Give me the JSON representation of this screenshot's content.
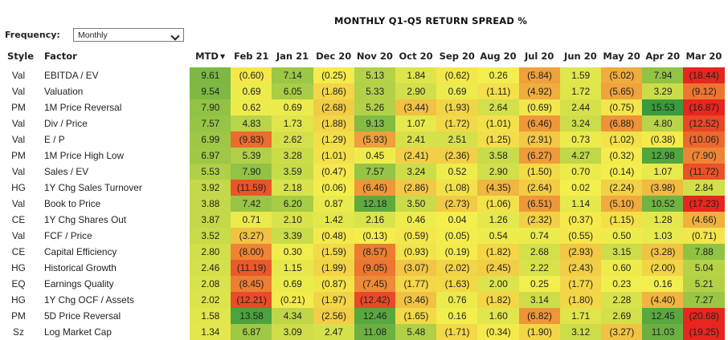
{
  "title": "MONTHLY Q1-Q5 RETURN SPREAD %",
  "frequency": {
    "label": "Frequency:",
    "value": "Monthly"
  },
  "headers": {
    "style": "Style",
    "factor": "Factor",
    "months": [
      "MTD",
      "Feb 21",
      "Jan 21",
      "Dec 20",
      "Nov 20",
      "Oct 20",
      "Sep 20",
      "Aug 20",
      "Jul 20",
      "Jun 20",
      "May 20",
      "Apr 20",
      "Mar 20"
    ]
  },
  "sorted_column": "MTD",
  "color_scale": {
    "negative": "#e8261f",
    "neutral": "#f4ef4d",
    "positive": "#3a9a3c",
    "range": [
      -15,
      15
    ]
  },
  "rows": [
    {
      "style": "Val",
      "factor": "EBITDA / EV",
      "values": [
        "9.61",
        "(0.60)",
        "7.14",
        "(0.25)",
        "5.13",
        "1.84",
        "(0.62)",
        "0.26",
        "(5.84)",
        "1.59",
        "(5.02)",
        "7.94",
        "(18.44)"
      ]
    },
    {
      "style": "Val",
      "factor": "Valuation",
      "values": [
        "9.54",
        "0.69",
        "6.05",
        "(1.86)",
        "5.33",
        "2.90",
        "0.69",
        "(1.11)",
        "(4.92)",
        "1.72",
        "(5.65)",
        "3.29",
        "(9.12)"
      ]
    },
    {
      "style": "PM",
      "factor": "1M Price Reversal",
      "values": [
        "7.90",
        "0.62",
        "0.69",
        "(2.68)",
        "5.26",
        "(3.44)",
        "(1.93)",
        "2.64",
        "(0.69)",
        "2.44",
        "(0.75)",
        "15.53",
        "(16.87)"
      ]
    },
    {
      "style": "Val",
      "factor": "Div / Price",
      "values": [
        "7.57",
        "4.83",
        "1.73",
        "(1.88)",
        "9.13",
        "1.07",
        "(1.72)",
        "(1.01)",
        "(6.46)",
        "3.24",
        "(6.88)",
        "4.80",
        "(12.52)"
      ]
    },
    {
      "style": "Val",
      "factor": "E / P",
      "values": [
        "6.99",
        "(9.83)",
        "2.62",
        "(1.29)",
        "(5.93)",
        "2.41",
        "2.51",
        "(1.25)",
        "(2.91)",
        "0.73",
        "(1.02)",
        "(0.38)",
        "(10.06)"
      ]
    },
    {
      "style": "PM",
      "factor": "1M Price High Low",
      "values": [
        "6.97",
        "5.39",
        "3.28",
        "(1.01)",
        "0.45",
        "(2.41)",
        "(2.36)",
        "3.58",
        "(6.27)",
        "4.27",
        "(0.32)",
        "12.98",
        "(7.90)"
      ]
    },
    {
      "style": "Val",
      "factor": "Sales / EV",
      "values": [
        "5.53",
        "7.90",
        "3.59",
        "(0.47)",
        "7.57",
        "3.24",
        "0.52",
        "2.90",
        "(1.50)",
        "0.70",
        "(0.14)",
        "1.07",
        "(11.72)"
      ]
    },
    {
      "style": "HG",
      "factor": "1Y Chg Sales Turnover",
      "values": [
        "3.92",
        "(11.59)",
        "2.18",
        "(0.06)",
        "(6.46)",
        "(2.86)",
        "(1.08)",
        "(4.35)",
        "(2.64)",
        "0.02",
        "(2.24)",
        "(3.98)",
        "2.84"
      ]
    },
    {
      "style": "Val",
      "factor": "Book to Price",
      "values": [
        "3.88",
        "7.42",
        "6.20",
        "0.87",
        "12.18",
        "3.50",
        "(2.73)",
        "(1.06)",
        "(6.51)",
        "1.14",
        "(5.10)",
        "10.52",
        "(17.23)"
      ]
    },
    {
      "style": "CE",
      "factor": "1Y Chg Shares Out",
      "values": [
        "3.87",
        "0.71",
        "2.10",
        "1.42",
        "2.16",
        "0.46",
        "0.04",
        "1.26",
        "(2.32)",
        "(0.37)",
        "(1.15)",
        "1.28",
        "(4.66)"
      ]
    },
    {
      "style": "Val",
      "factor": "FCF / Price",
      "values": [
        "3.52",
        "(3.27)",
        "3.39",
        "(0.48)",
        "(0.13)",
        "(0.59)",
        "(0.05)",
        "0.54",
        "0.74",
        "(0.55)",
        "0.50",
        "1.03",
        "(0.71)"
      ]
    },
    {
      "style": "CE",
      "factor": "Capital Efficiency",
      "values": [
        "2.80",
        "(8.00)",
        "0.30",
        "(1.59)",
        "(8.57)",
        "(0.93)",
        "(0.19)",
        "(1.82)",
        "2.68",
        "(2.93)",
        "3.15",
        "(3.28)",
        "7.88"
      ]
    },
    {
      "style": "HG",
      "factor": "Historical Growth",
      "values": [
        "2.46",
        "(11.19)",
        "1.15",
        "(1.99)",
        "(9.05)",
        "(3.07)",
        "(2.02)",
        "(2.45)",
        "2.22",
        "(2.43)",
        "0.60",
        "(2.00)",
        "5.04"
      ]
    },
    {
      "style": "EQ",
      "factor": "Earnings Quality",
      "values": [
        "2.08",
        "(8.45)",
        "0.69",
        "(0.87)",
        "(7.45)",
        "(1.77)",
        "(1.63)",
        "2.00",
        "0.25",
        "(1.77)",
        "0.23",
        "0.16",
        "5.21"
      ]
    },
    {
      "style": "HG",
      "factor": "1Y Chg OCF / Assets",
      "values": [
        "2.02",
        "(12.21)",
        "(0.21)",
        "(1.97)",
        "(12.42)",
        "(3.46)",
        "0.76",
        "(1.82)",
        "3.14",
        "(1.80)",
        "2.28",
        "(4.40)",
        "7.27"
      ]
    },
    {
      "style": "PM",
      "factor": "5D Price Reversal",
      "values": [
        "1.58",
        "13.58",
        "4.34",
        "(2.56)",
        "12.46",
        "(1.65)",
        "0.16",
        "1.60",
        "(6.82)",
        "1.71",
        "2.69",
        "12.45",
        "(20.68)"
      ]
    },
    {
      "style": "Sz",
      "factor": "Log Market Cap",
      "values": [
        "1.34",
        "6.87",
        "3.09",
        "2.47",
        "11.08",
        "5.48",
        "(1.71)",
        "(0.34)",
        "(1.90)",
        "3.12",
        "(3.27)",
        "11.03",
        "(19.25)"
      ]
    }
  ]
}
